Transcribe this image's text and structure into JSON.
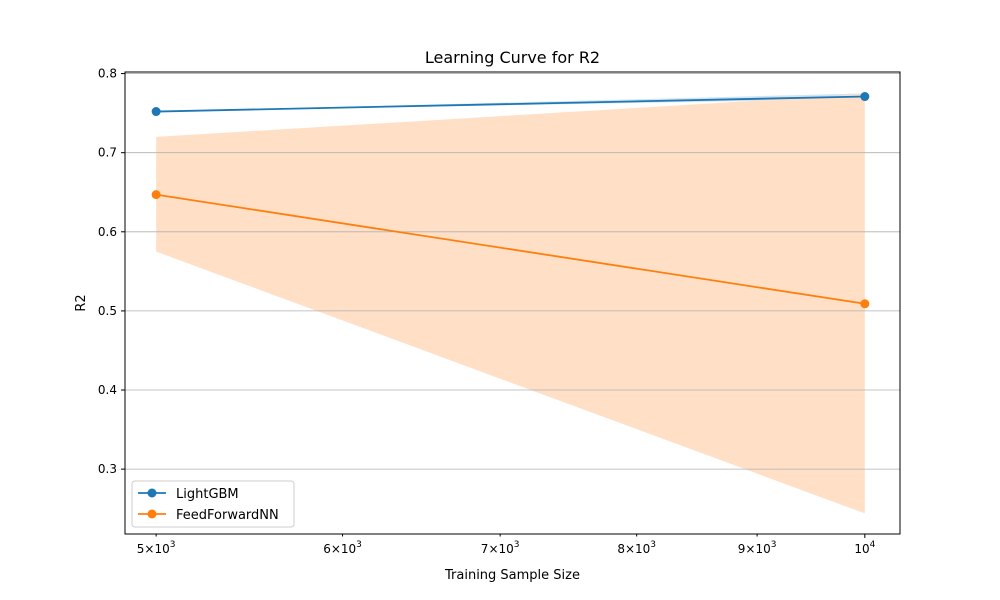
{
  "chart_data": {
    "type": "line",
    "title": "Learning Curve for R2",
    "xlabel": "Training Sample Size",
    "ylabel": "R2",
    "xscale": "log",
    "xlim": [
      4850,
      10350
    ],
    "ylim": [
      0.218,
      0.802
    ],
    "x_ticks": [
      {
        "value": 5000,
        "mantissa": "5",
        "base": "10",
        "exp": "3"
      },
      {
        "value": 6000,
        "mantissa": "6",
        "base": "10",
        "exp": "3"
      },
      {
        "value": 7000,
        "mantissa": "7",
        "base": "10",
        "exp": "3"
      },
      {
        "value": 8000,
        "mantissa": "8",
        "base": "10",
        "exp": "3"
      },
      {
        "value": 9000,
        "mantissa": "9",
        "base": "10",
        "exp": "3"
      },
      {
        "value": 10000,
        "mantissa": "",
        "base": "10",
        "exp": "4"
      }
    ],
    "y_ticks": [
      "0.3",
      "0.4",
      "0.5",
      "0.6",
      "0.7",
      "0.8"
    ],
    "grid": "horizontal",
    "x": [
      5000,
      10000
    ],
    "series": [
      {
        "name": "LightGBM",
        "color": "#1f77b4",
        "values": [
          0.752,
          0.771
        ],
        "band_lower": [
          0.752,
          0.768
        ],
        "band_upper": [
          0.752,
          0.775
        ]
      },
      {
        "name": "FeedForwardNN",
        "color": "#ff7f0e",
        "band_color": "#ffe0c7",
        "values": [
          0.647,
          0.509
        ],
        "band_lower": [
          0.575,
          0.244
        ],
        "band_upper": [
          0.72,
          0.774
        ]
      }
    ],
    "legend_position": "lower-left"
  }
}
